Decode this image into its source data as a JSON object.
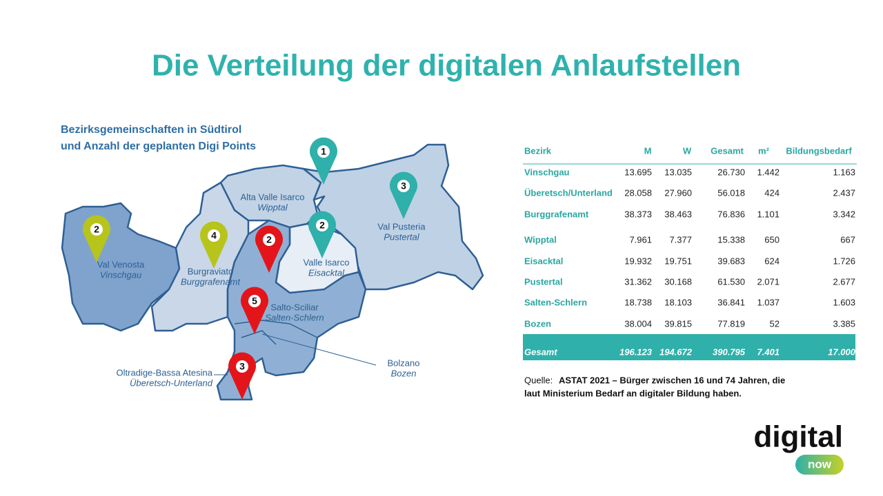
{
  "title": "Die Verteilung der digitalen Anlaufstellen",
  "map": {
    "heading": [
      "Bezirksgemeinschaften in Südtirol",
      "und Anzahl der geplanten Digi Points"
    ],
    "regions": [
      {
        "name": "Val Venosta",
        "name_de": "Vinschgau"
      },
      {
        "name": "Burgraviato",
        "name_de": "Burggrafenamt"
      },
      {
        "name": "Alta Valle Isarco",
        "name_de": "Wipptal"
      },
      {
        "name": "Val Pusteria",
        "name_de": "Pustertal"
      },
      {
        "name": "Valle Isarco",
        "name_de": "Eisacktal"
      },
      {
        "name": "Salto-Sciliar",
        "name_de": "Salten-Schlern"
      },
      {
        "name": "Oltradige-Bassa Atesina",
        "name_de": "Überetsch-Unterland"
      },
      {
        "name": "Bolzano",
        "name_de": "Bozen"
      }
    ],
    "pins": [
      {
        "label": "1",
        "color": "#2fb0aa"
      },
      {
        "label": "3",
        "color": "#2fb0aa"
      },
      {
        "label": "2",
        "color": "#2fb0aa"
      },
      {
        "label": "2",
        "color": "#b7c41c"
      },
      {
        "label": "4",
        "color": "#b7c41c"
      },
      {
        "label": "2",
        "color": "#e3151a"
      },
      {
        "label": "5",
        "color": "#e3151a"
      },
      {
        "label": "3",
        "color": "#e3151a"
      }
    ]
  },
  "table": {
    "header": [
      "Bezirk",
      "M",
      "W",
      "Gesamt",
      "m²",
      "Bildungsbedarf"
    ],
    "rows": [
      [
        "Vinschgau",
        "13.695",
        "13.035",
        "26.730",
        "1.442",
        "1.163"
      ],
      [
        "Überetsch/Unterland",
        "28.058",
        "27.960",
        "56.018",
        "424",
        "2.437"
      ],
      [
        "Burggrafenamt",
        "38.373",
        "38.463",
        "76.836",
        "1.101",
        "3.342"
      ],
      [
        "Wipptal",
        "7.961",
        "7.377",
        "15.338",
        "650",
        "667"
      ],
      [
        "Eisacktal",
        "19.932",
        "19.751",
        "39.683",
        "624",
        "1.726"
      ],
      [
        "Pustertal",
        "31.362",
        "30.168",
        "61.530",
        "2.071",
        "2.677"
      ],
      [
        "Salten-Schlern",
        "18.738",
        "18.103",
        "36.841",
        "1.037",
        "1.603"
      ],
      [
        "Bozen",
        "38.004",
        "39.815",
        "77.819",
        "52",
        "3.385"
      ]
    ],
    "total": [
      "Gesamt",
      "196.123",
      "194.672",
      "390.795",
      "7.401",
      "17.000"
    ]
  },
  "source": {
    "label": "Quelle:",
    "lines": [
      "ASTAT 2021 – Bürger zwischen 16 und 74 Jahren, die",
      "laut Ministerium Bedarf an digitaler Bildung haben."
    ]
  },
  "logo": {
    "word": "digital",
    "badge": "now"
  }
}
